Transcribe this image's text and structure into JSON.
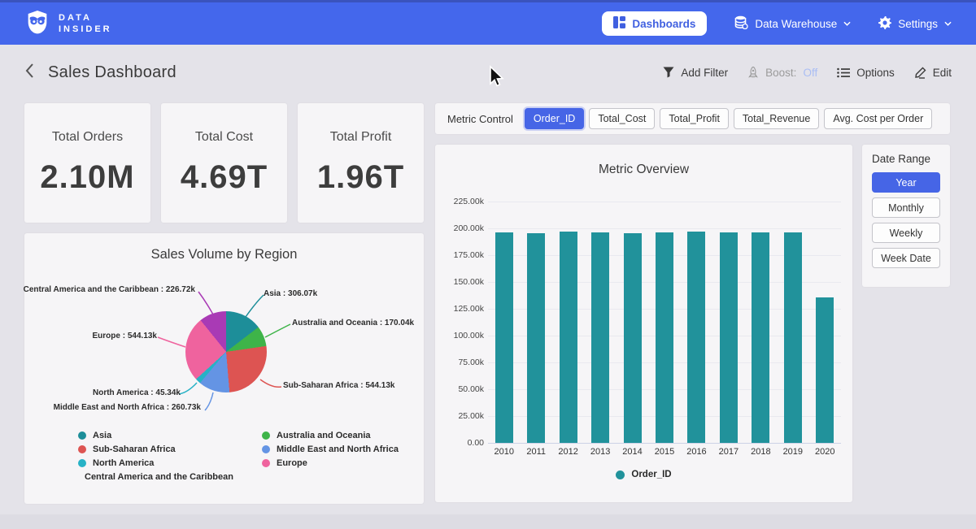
{
  "navbar": {
    "brand_line1": "DATA",
    "brand_line2": "INSIDER",
    "dashboards": "Dashboards",
    "data_warehouse": "Data Warehouse",
    "settings": "Settings"
  },
  "header": {
    "title": "Sales Dashboard",
    "add_filter": "Add Filter",
    "boost_label": "Boost:",
    "boost_state": "Off",
    "options": "Options",
    "edit": "Edit"
  },
  "kpis": [
    {
      "label": "Total Orders",
      "value": "2.10M"
    },
    {
      "label": "Total Cost",
      "value": "4.69T"
    },
    {
      "label": "Total Profit",
      "value": "1.96T"
    }
  ],
  "metric_control": {
    "label": "Metric Control",
    "buttons": [
      {
        "label": "Order_ID",
        "selected": true
      },
      {
        "label": "Total_Cost",
        "selected": false
      },
      {
        "label": "Total_Profit",
        "selected": false
      },
      {
        "label": "Total_Revenue",
        "selected": false
      },
      {
        "label": "Avg. Cost per Order",
        "selected": false
      }
    ]
  },
  "date_range": {
    "label": "Date Range",
    "buttons": [
      {
        "label": "Year",
        "selected": true
      },
      {
        "label": "Monthly",
        "selected": false
      },
      {
        "label": "Weekly",
        "selected": false
      },
      {
        "label": "Week Date",
        "selected": false
      }
    ]
  },
  "colors": {
    "navbar_blue": "#4467ec",
    "accent_blue": "#4665e6",
    "bar_teal": "#21929b",
    "page_bg": "#e4e3e9",
    "panel_bg": "#f6f5f7"
  },
  "chart_data": [
    {
      "type": "bar",
      "title": "Metric Overview",
      "categories": [
        "2010",
        "2011",
        "2012",
        "2013",
        "2014",
        "2015",
        "2016",
        "2017",
        "2018",
        "2019",
        "2020"
      ],
      "series": [
        {
          "name": "Order_ID",
          "color": "#21929b",
          "values": [
            196200,
            195800,
            197200,
            195900,
            195800,
            195900,
            197300,
            196300,
            195900,
            196300,
            136000
          ]
        }
      ],
      "ylabel": "",
      "xlabel": "",
      "ylim": [
        0,
        225000
      ],
      "y_ticks": [
        "225.00k",
        "200.00k",
        "175.00k",
        "150.00k",
        "125.00k",
        "100.00k",
        "75.00k",
        "50.00k",
        "25.00k",
        "0.00"
      ],
      "grid": true,
      "legend_position": "bottom"
    },
    {
      "type": "pie",
      "title": "Sales Volume by Region",
      "slices": [
        {
          "label": "Asia",
          "value": 306070,
          "display": "306.07k",
          "color": "#1d8e99"
        },
        {
          "label": "Australia and Oceania",
          "value": 170040,
          "display": "170.04k",
          "color": "#3eb449"
        },
        {
          "label": "Sub-Saharan Africa",
          "value": 544130,
          "display": "544.13k",
          "color": "#dd5452"
        },
        {
          "label": "Middle East and North Africa",
          "value": 260730,
          "display": "260.73k",
          "color": "#6494e4"
        },
        {
          "label": "North America",
          "value": 45340,
          "display": "45.34k",
          "color": "#27b2c6"
        },
        {
          "label": "Europe",
          "value": 544130,
          "display": "544.13k",
          "color": "#ef639e"
        },
        {
          "label": "Central America and the Caribbean",
          "value": 226720,
          "display": "226.72k",
          "color": "#a93ab5"
        }
      ],
      "legend_columns": [
        [
          0,
          2,
          4,
          6
        ],
        [
          1,
          3,
          5
        ]
      ],
      "label_separator": " : "
    }
  ],
  "icons": {
    "owl-logo": "owl",
    "dashboards-icon": "grid-layout",
    "data-warehouse-icon": "database-stack",
    "settings-icon": "gear",
    "chevron-down-icon": "v",
    "back-chevron-icon": "<",
    "filter-icon": "funnel",
    "boost-icon": "rocket",
    "options-icon": "list",
    "edit-icon": "pencil",
    "cursor-icon": "arrow-pointer"
  }
}
